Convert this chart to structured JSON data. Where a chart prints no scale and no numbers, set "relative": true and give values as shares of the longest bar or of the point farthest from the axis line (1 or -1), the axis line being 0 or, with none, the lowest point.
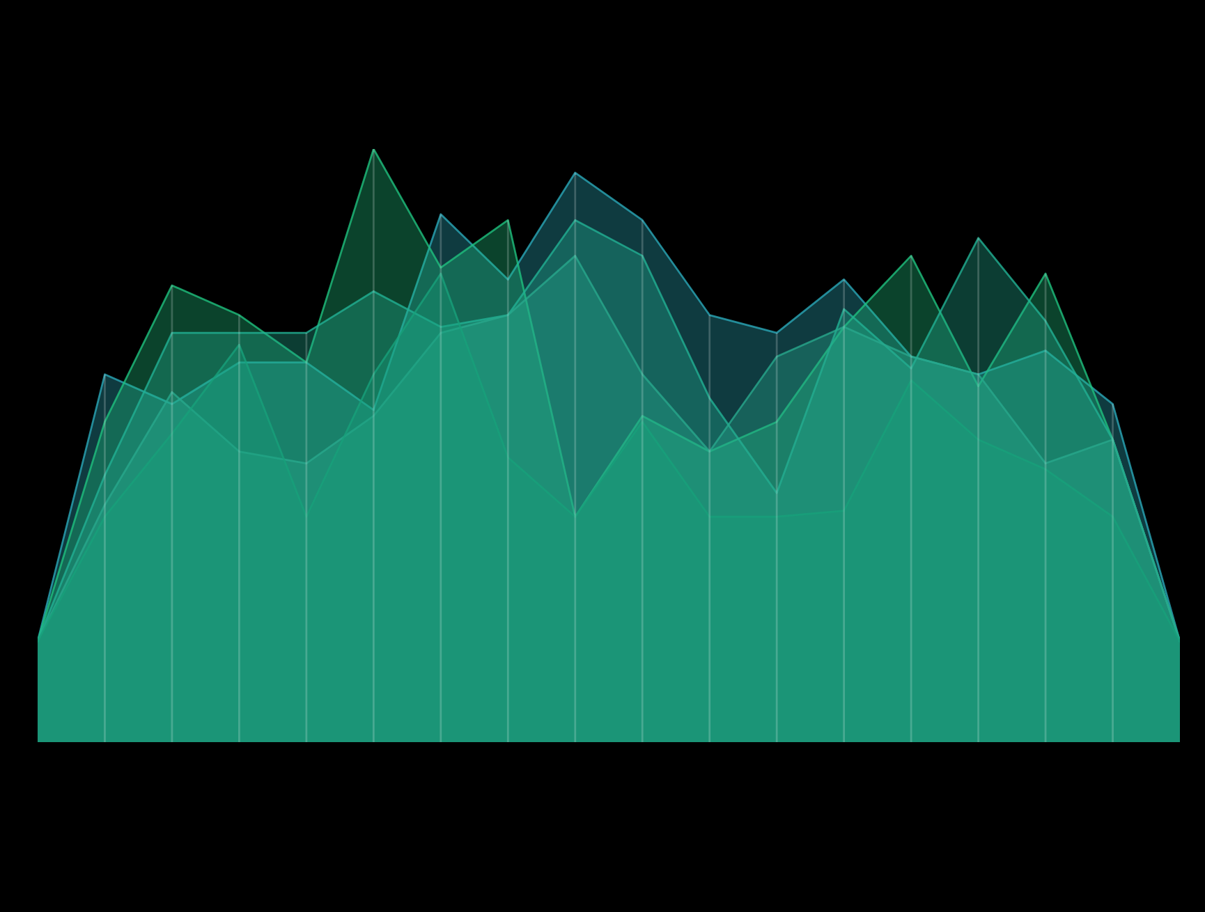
{
  "chart_data": {
    "type": "area",
    "relative": true,
    "grid": "x",
    "categories": [
      null,
      null,
      null,
      null,
      null,
      null,
      null,
      null,
      null,
      null,
      null,
      null,
      null,
      null,
      null,
      null,
      null,
      null
    ],
    "series": [
      {
        "color": "#2aa8b8",
        "values": [
          0.17,
          0.62,
          0.57,
          0.64,
          0.64,
          0.56,
          0.89,
          0.78,
          0.96,
          0.88,
          0.72,
          0.69,
          0.78,
          0.65,
          0.62,
          0.66,
          0.57,
          0.17
        ]
      },
      {
        "color": "#1fc07e",
        "values": [
          0.17,
          0.54,
          0.77,
          0.72,
          0.64,
          1.0,
          0.8,
          0.88,
          0.38,
          0.55,
          0.49,
          0.54,
          0.7,
          0.82,
          0.6,
          0.79,
          0.51,
          0.17
        ]
      },
      {
        "color": "#22b093",
        "values": [
          0.17,
          0.45,
          0.69,
          0.69,
          0.69,
          0.76,
          0.7,
          0.72,
          0.88,
          0.82,
          0.58,
          0.42,
          0.73,
          0.63,
          0.85,
          0.71,
          0.51,
          0.17
        ]
      },
      {
        "color": "#28a88c",
        "values": [
          0.17,
          0.4,
          0.59,
          0.49,
          0.47,
          0.55,
          0.69,
          0.72,
          0.82,
          0.62,
          0.49,
          0.65,
          0.7,
          0.65,
          0.62,
          0.47,
          0.51,
          0.17
        ]
      },
      {
        "color": "#18a07a",
        "values": [
          0.17,
          0.38,
          0.52,
          0.67,
          0.38,
          0.62,
          0.79,
          0.48,
          0.38,
          0.54,
          0.38,
          0.38,
          0.39,
          0.61,
          0.51,
          0.46,
          0.38,
          0.17
        ]
      }
    ]
  }
}
